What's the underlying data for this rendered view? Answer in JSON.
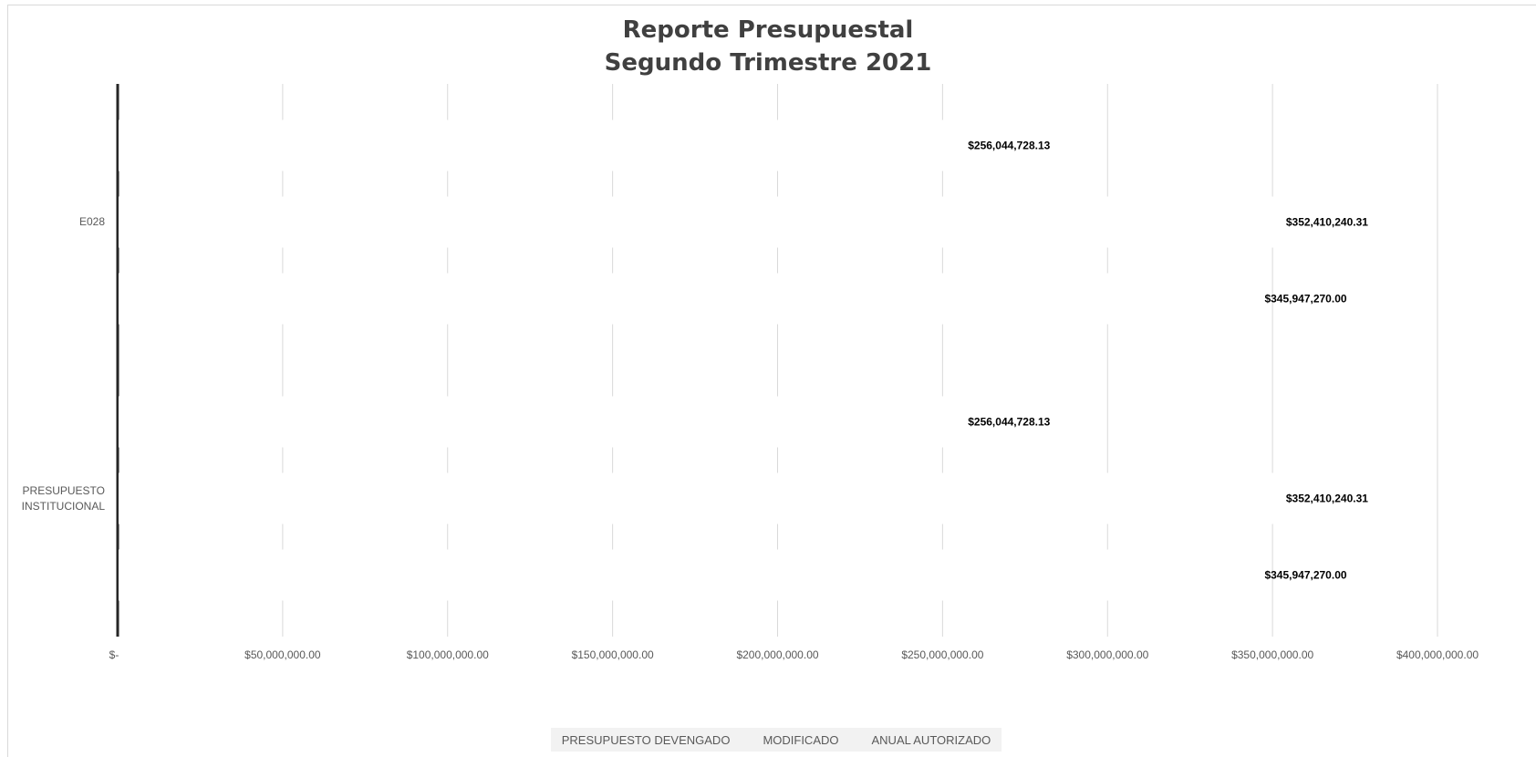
{
  "chart_data": {
    "type": "bar",
    "orientation": "horizontal",
    "title": "Reporte Presupuestal",
    "subtitle": "Segundo Trimestre 2021",
    "categories": [
      "E028",
      "PRESUPUESTO INSTITUCIONAL"
    ],
    "series": [
      {
        "name": "PRESUPUESTO DEVENGADO",
        "values": [
          256044728.13,
          256044728.13
        ],
        "labels": [
          "$256,044,728.13",
          "$256,044,728.13"
        ]
      },
      {
        "name": "MODIFICADO",
        "values": [
          352410240.31,
          352410240.31
        ],
        "labels": [
          "$352,410,240.31",
          "$352,410,240.31"
        ]
      },
      {
        "name": "ANUAL AUTORIZADO",
        "values": [
          345947270.0,
          345947270.0
        ],
        "labels": [
          "$345,947,270.00",
          "$345,947,270.00"
        ]
      }
    ],
    "xlim": [
      0,
      400000000
    ],
    "x_ticks": [
      {
        "value": 0,
        "label": "$-"
      },
      {
        "value": 50000000,
        "label": "$50,000,000.00"
      },
      {
        "value": 100000000,
        "label": "$100,000,000.00"
      },
      {
        "value": 150000000,
        "label": "$150,000,000.00"
      },
      {
        "value": 200000000,
        "label": "$200,000,000.00"
      },
      {
        "value": 250000000,
        "label": "$250,000,000.00"
      },
      {
        "value": 300000000,
        "label": "$300,000,000.00"
      },
      {
        "value": 350000000,
        "label": "$350,000,000.00"
      },
      {
        "value": 400000000,
        "label": "$400,000,000.00"
      }
    ],
    "grid": true,
    "legend_position": "bottom",
    "bar_color": "#ffffff",
    "axis_color": "#262626",
    "gridline_color": "#d9d9d9"
  }
}
